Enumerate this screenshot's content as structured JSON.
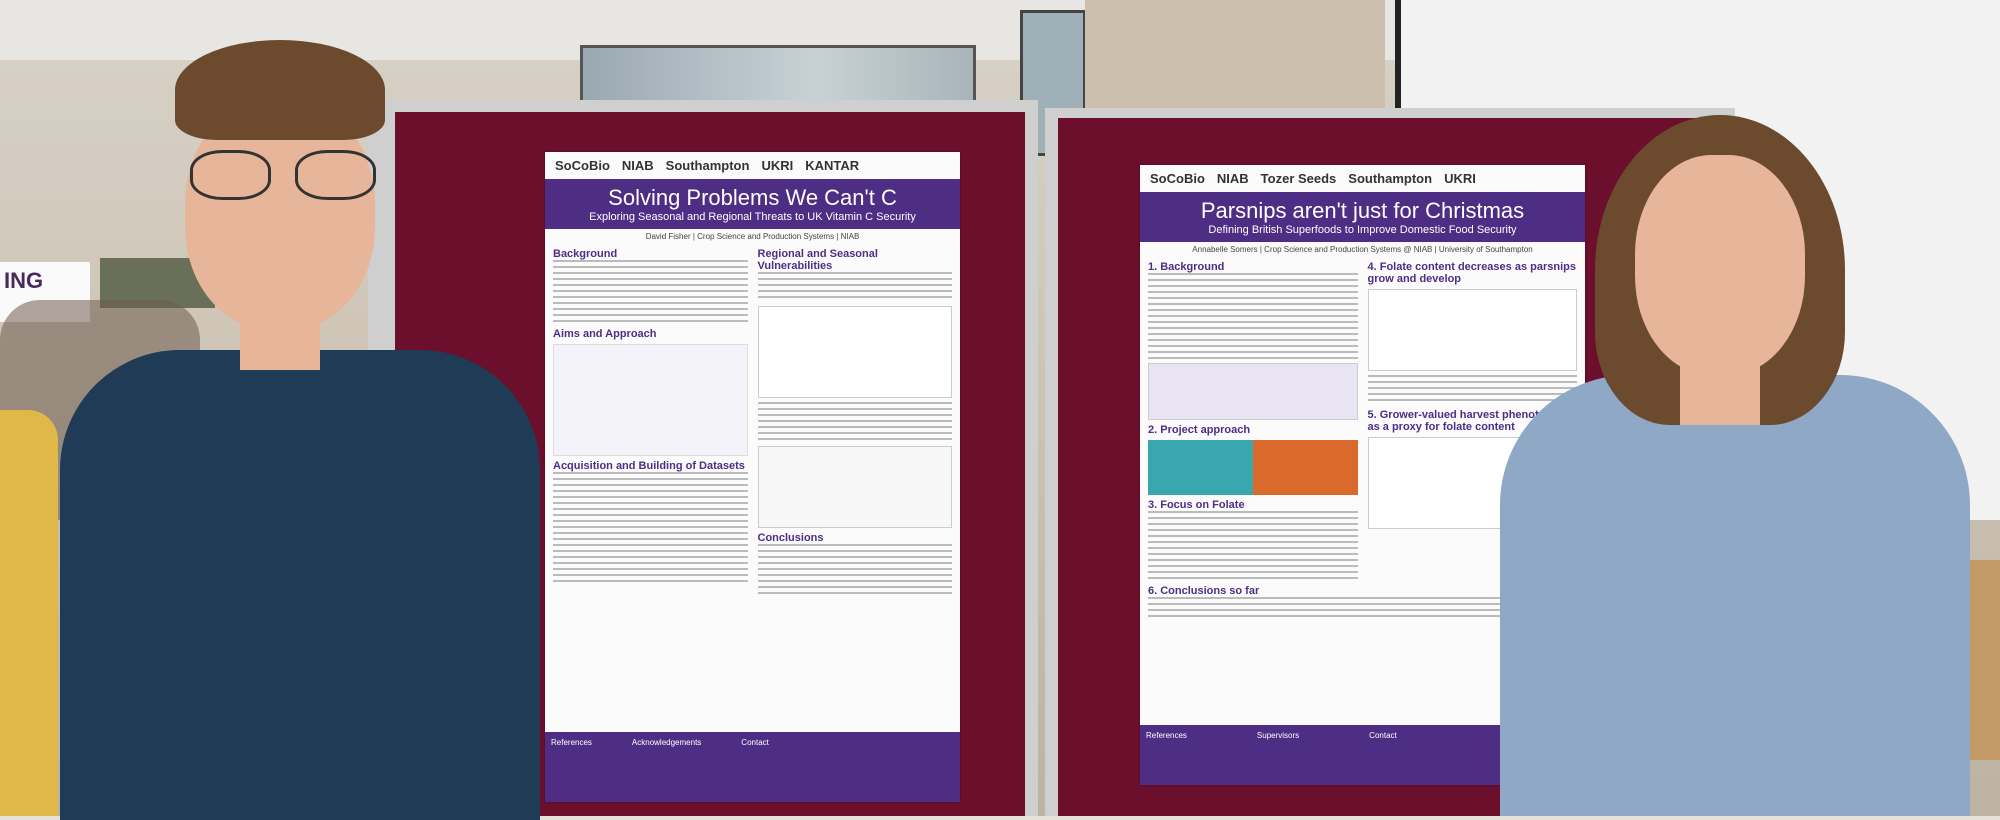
{
  "poster_left": {
    "logos": [
      "SoCoBio",
      "NIAB",
      "Southampton",
      "UKRI",
      "KANTAR"
    ],
    "title": "Solving Problems We Can't C",
    "subtitle": "Exploring Seasonal and Regional Threats to UK Vitamin C Security",
    "author": "David Fisher | Crop Science and Production Systems | NIAB",
    "sections": [
      "Background",
      "Aims and Approach",
      "Acquisition and Building of Datasets",
      "Regional and Seasonal Vulnerabilities",
      "Conclusions"
    ],
    "footer": [
      "References",
      "Acknowledgements",
      "Contact"
    ]
  },
  "poster_right": {
    "logos": [
      "SoCoBio",
      "NIAB",
      "Tozer Seeds",
      "Southampton",
      "UKRI"
    ],
    "title": "Parsnips aren't just for Christmas",
    "subtitle": "Defining British Superfoods to Improve Domestic Food Security",
    "author": "Annabelle Somers | Crop Science and Production Systems @ NIAB | University of Southampton",
    "sections": [
      "1. Background",
      "2. Project approach",
      "3. Focus on Folate",
      "4. Folate content decreases as parsnips grow and develop",
      "5. Grower-valued harvest phenotypes as a proxy for folate content",
      "6. Conclusions so far"
    ],
    "footer": [
      "References",
      "Supervisors",
      "Contact"
    ]
  },
  "background": {
    "banner_text": "ING"
  },
  "colors": {
    "board": "#6b0f2d",
    "poster_header": "#4e2e85",
    "sweater_left": "#1f3b55",
    "sweater_right": "#8fa8c6"
  }
}
